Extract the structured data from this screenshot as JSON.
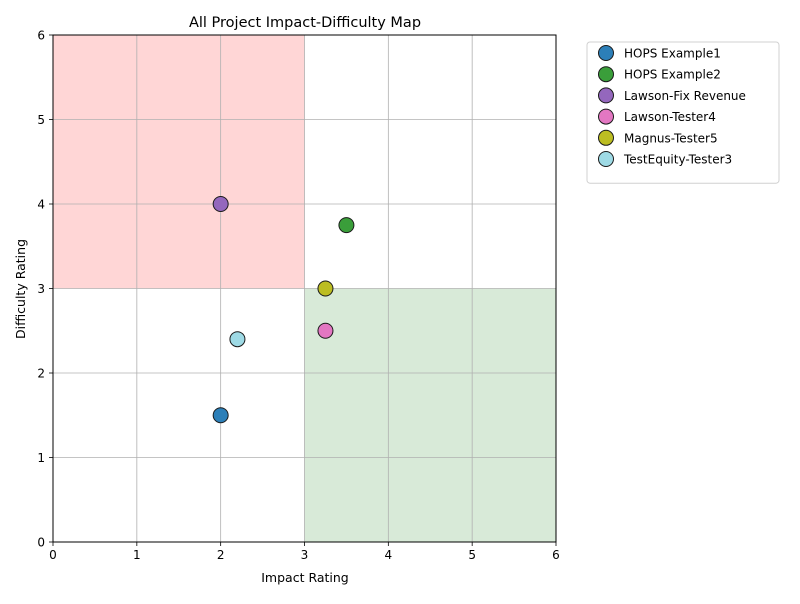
{
  "chart_data": {
    "type": "scatter",
    "title": "All Project Impact-Difficulty Map",
    "xlabel": "Impact Rating",
    "ylabel": "Difficulty Rating",
    "xlim": [
      0,
      6
    ],
    "ylim": [
      0,
      6
    ],
    "xticks": [
      0,
      1,
      2,
      3,
      4,
      5,
      6
    ],
    "yticks": [
      0,
      1,
      2,
      3,
      4,
      5,
      6
    ],
    "grid": true,
    "legend_position": "outside-top-right",
    "regions": [
      {
        "x": [
          0,
          3
        ],
        "y": [
          3,
          6
        ],
        "color": "#ff9999",
        "opacity": 0.4
      },
      {
        "x": [
          3,
          6
        ],
        "y": [
          0,
          3
        ],
        "color": "#9dcb9d",
        "opacity": 0.4
      }
    ],
    "series": [
      {
        "name": "HOPS Example1",
        "color": "#2c7fb8",
        "points": [
          {
            "x": 2.0,
            "y": 1.5
          }
        ]
      },
      {
        "name": "HOPS Example2",
        "color": "#3a9e3a",
        "points": [
          {
            "x": 3.5,
            "y": 3.75
          }
        ]
      },
      {
        "name": "Lawson-Fix Revenue",
        "color": "#9467bd",
        "points": [
          {
            "x": 2.0,
            "y": 4.0
          }
        ]
      },
      {
        "name": "Lawson-Tester4",
        "color": "#e377c2",
        "points": [
          {
            "x": 3.25,
            "y": 2.5
          }
        ]
      },
      {
        "name": "Magnus-Tester5",
        "color": "#bcbd22",
        "points": [
          {
            "x": 3.25,
            "y": 3.0
          }
        ]
      },
      {
        "name": "TestEquity-Tester3",
        "color": "#9edae5",
        "points": [
          {
            "x": 2.2,
            "y": 2.4
          }
        ]
      }
    ]
  }
}
